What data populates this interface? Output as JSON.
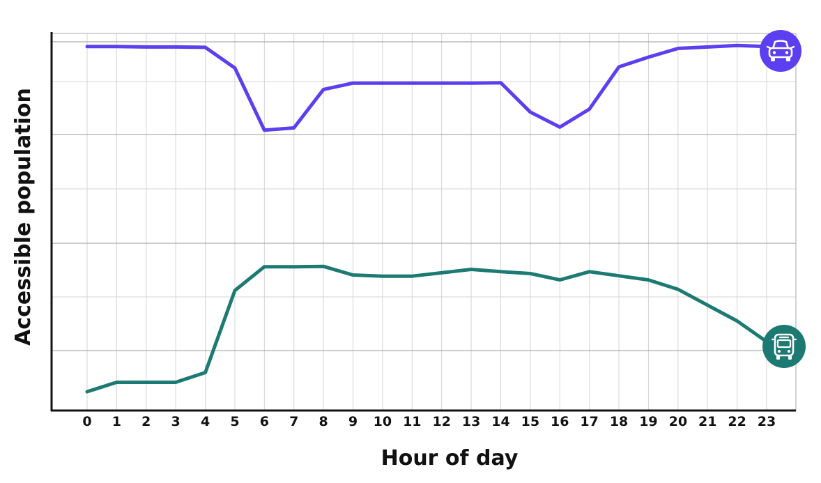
{
  "chart_data": {
    "type": "line",
    "title": "",
    "xlabel": "Hour of day",
    "ylabel": "Accessible population",
    "x": [
      0,
      1,
      2,
      3,
      4,
      5,
      6,
      7,
      8,
      9,
      10,
      11,
      12,
      13,
      14,
      15,
      16,
      17,
      18,
      19,
      20,
      21,
      22,
      23
    ],
    "xlim": [
      0,
      23
    ],
    "ylim": [
      0,
      100
    ],
    "y_tick_labels": "none",
    "grid": true,
    "series": [
      {
        "name": "",
        "marker_icon": "car-icon",
        "color": "#5b3ff0",
        "values": [
          95.4,
          95.4,
          95.3,
          95.3,
          95.2,
          89.7,
          73.2,
          73.8,
          84.0,
          85.7,
          85.7,
          85.7,
          85.7,
          85.7,
          85.8,
          78.0,
          74.0,
          78.8,
          90.0,
          92.6,
          94.9,
          95.3,
          95.7,
          95.4
        ]
      },
      {
        "name": "",
        "marker_icon": "bus-icon",
        "color": "#1d7a72",
        "values": [
          3.7,
          6.2,
          6.2,
          6.2,
          8.8,
          30.6,
          36.9,
          36.9,
          37.0,
          34.7,
          34.4,
          34.4,
          35.3,
          36.2,
          35.6,
          35.1,
          33.4,
          35.6,
          34.5,
          33.4,
          30.9,
          26.7,
          22.5,
          17.0
        ]
      }
    ]
  }
}
